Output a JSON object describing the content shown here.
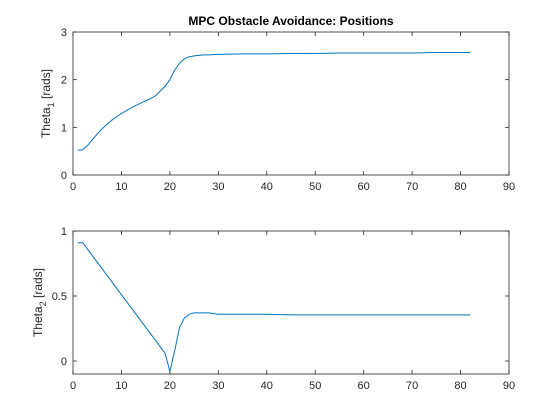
{
  "chart_data": [
    {
      "type": "line",
      "title": "MPC Obstacle Avoidance: Positions",
      "xlabel": "",
      "ylabel": "Theta",
      "ylabel_subscript": "1",
      "ylabel_unit": " [rads]",
      "xlim": [
        0,
        90
      ],
      "ylim": [
        0,
        3
      ],
      "xticks": [
        0,
        10,
        20,
        30,
        40,
        50,
        60,
        70,
        80,
        90
      ],
      "yticks": [
        0,
        1,
        2,
        3
      ],
      "ytick_labels": [
        "0",
        "1",
        "2",
        "3"
      ],
      "grid": false,
      "series": [
        {
          "name": "theta1",
          "color": "#0072BD",
          "x": [
            1,
            2,
            3,
            4,
            5,
            6,
            7,
            8,
            9,
            10,
            11,
            12,
            13,
            14,
            15,
            16,
            17,
            18,
            19,
            20,
            21,
            22,
            23,
            24,
            25,
            26,
            27,
            28,
            30,
            35,
            40,
            45,
            50,
            55,
            60,
            65,
            70,
            75,
            80,
            82
          ],
          "y": [
            0.52,
            0.53,
            0.62,
            0.74,
            0.86,
            0.97,
            1.06,
            1.15,
            1.22,
            1.29,
            1.35,
            1.41,
            1.46,
            1.51,
            1.56,
            1.6,
            1.66,
            1.76,
            1.86,
            2.0,
            2.2,
            2.35,
            2.44,
            2.48,
            2.5,
            2.51,
            2.52,
            2.52,
            2.53,
            2.54,
            2.54,
            2.55,
            2.55,
            2.56,
            2.56,
            2.56,
            2.56,
            2.57,
            2.57,
            2.57
          ]
        }
      ]
    },
    {
      "type": "line",
      "title": "",
      "xlabel": "",
      "ylabel": "Theta",
      "ylabel_subscript": "2",
      "ylabel_unit": " [rads]",
      "xlim": [
        0,
        90
      ],
      "ylim": [
        -0.1,
        1
      ],
      "xticks": [
        0,
        10,
        20,
        30,
        40,
        50,
        60,
        70,
        80,
        90
      ],
      "yticks": [
        0,
        0.5,
        1
      ],
      "ytick_labels": [
        "0",
        "0.5",
        "1"
      ],
      "grid": false,
      "series": [
        {
          "name": "theta2",
          "color": "#0072BD",
          "x": [
            1,
            2,
            3,
            4,
            5,
            6,
            7,
            8,
            9,
            10,
            11,
            12,
            13,
            14,
            15,
            16,
            17,
            18,
            19,
            20,
            21,
            22,
            23,
            24,
            25,
            26,
            27,
            28,
            30,
            35,
            40,
            45,
            50,
            60,
            70,
            80,
            82
          ],
          "y": [
            0.91,
            0.91,
            0.86,
            0.81,
            0.76,
            0.71,
            0.66,
            0.61,
            0.56,
            0.51,
            0.46,
            0.41,
            0.36,
            0.31,
            0.26,
            0.21,
            0.16,
            0.11,
            0.06,
            -0.08,
            0.08,
            0.26,
            0.33,
            0.36,
            0.37,
            0.37,
            0.37,
            0.37,
            0.36,
            0.36,
            0.36,
            0.355,
            0.355,
            0.355,
            0.355,
            0.355,
            0.355
          ]
        }
      ]
    }
  ]
}
